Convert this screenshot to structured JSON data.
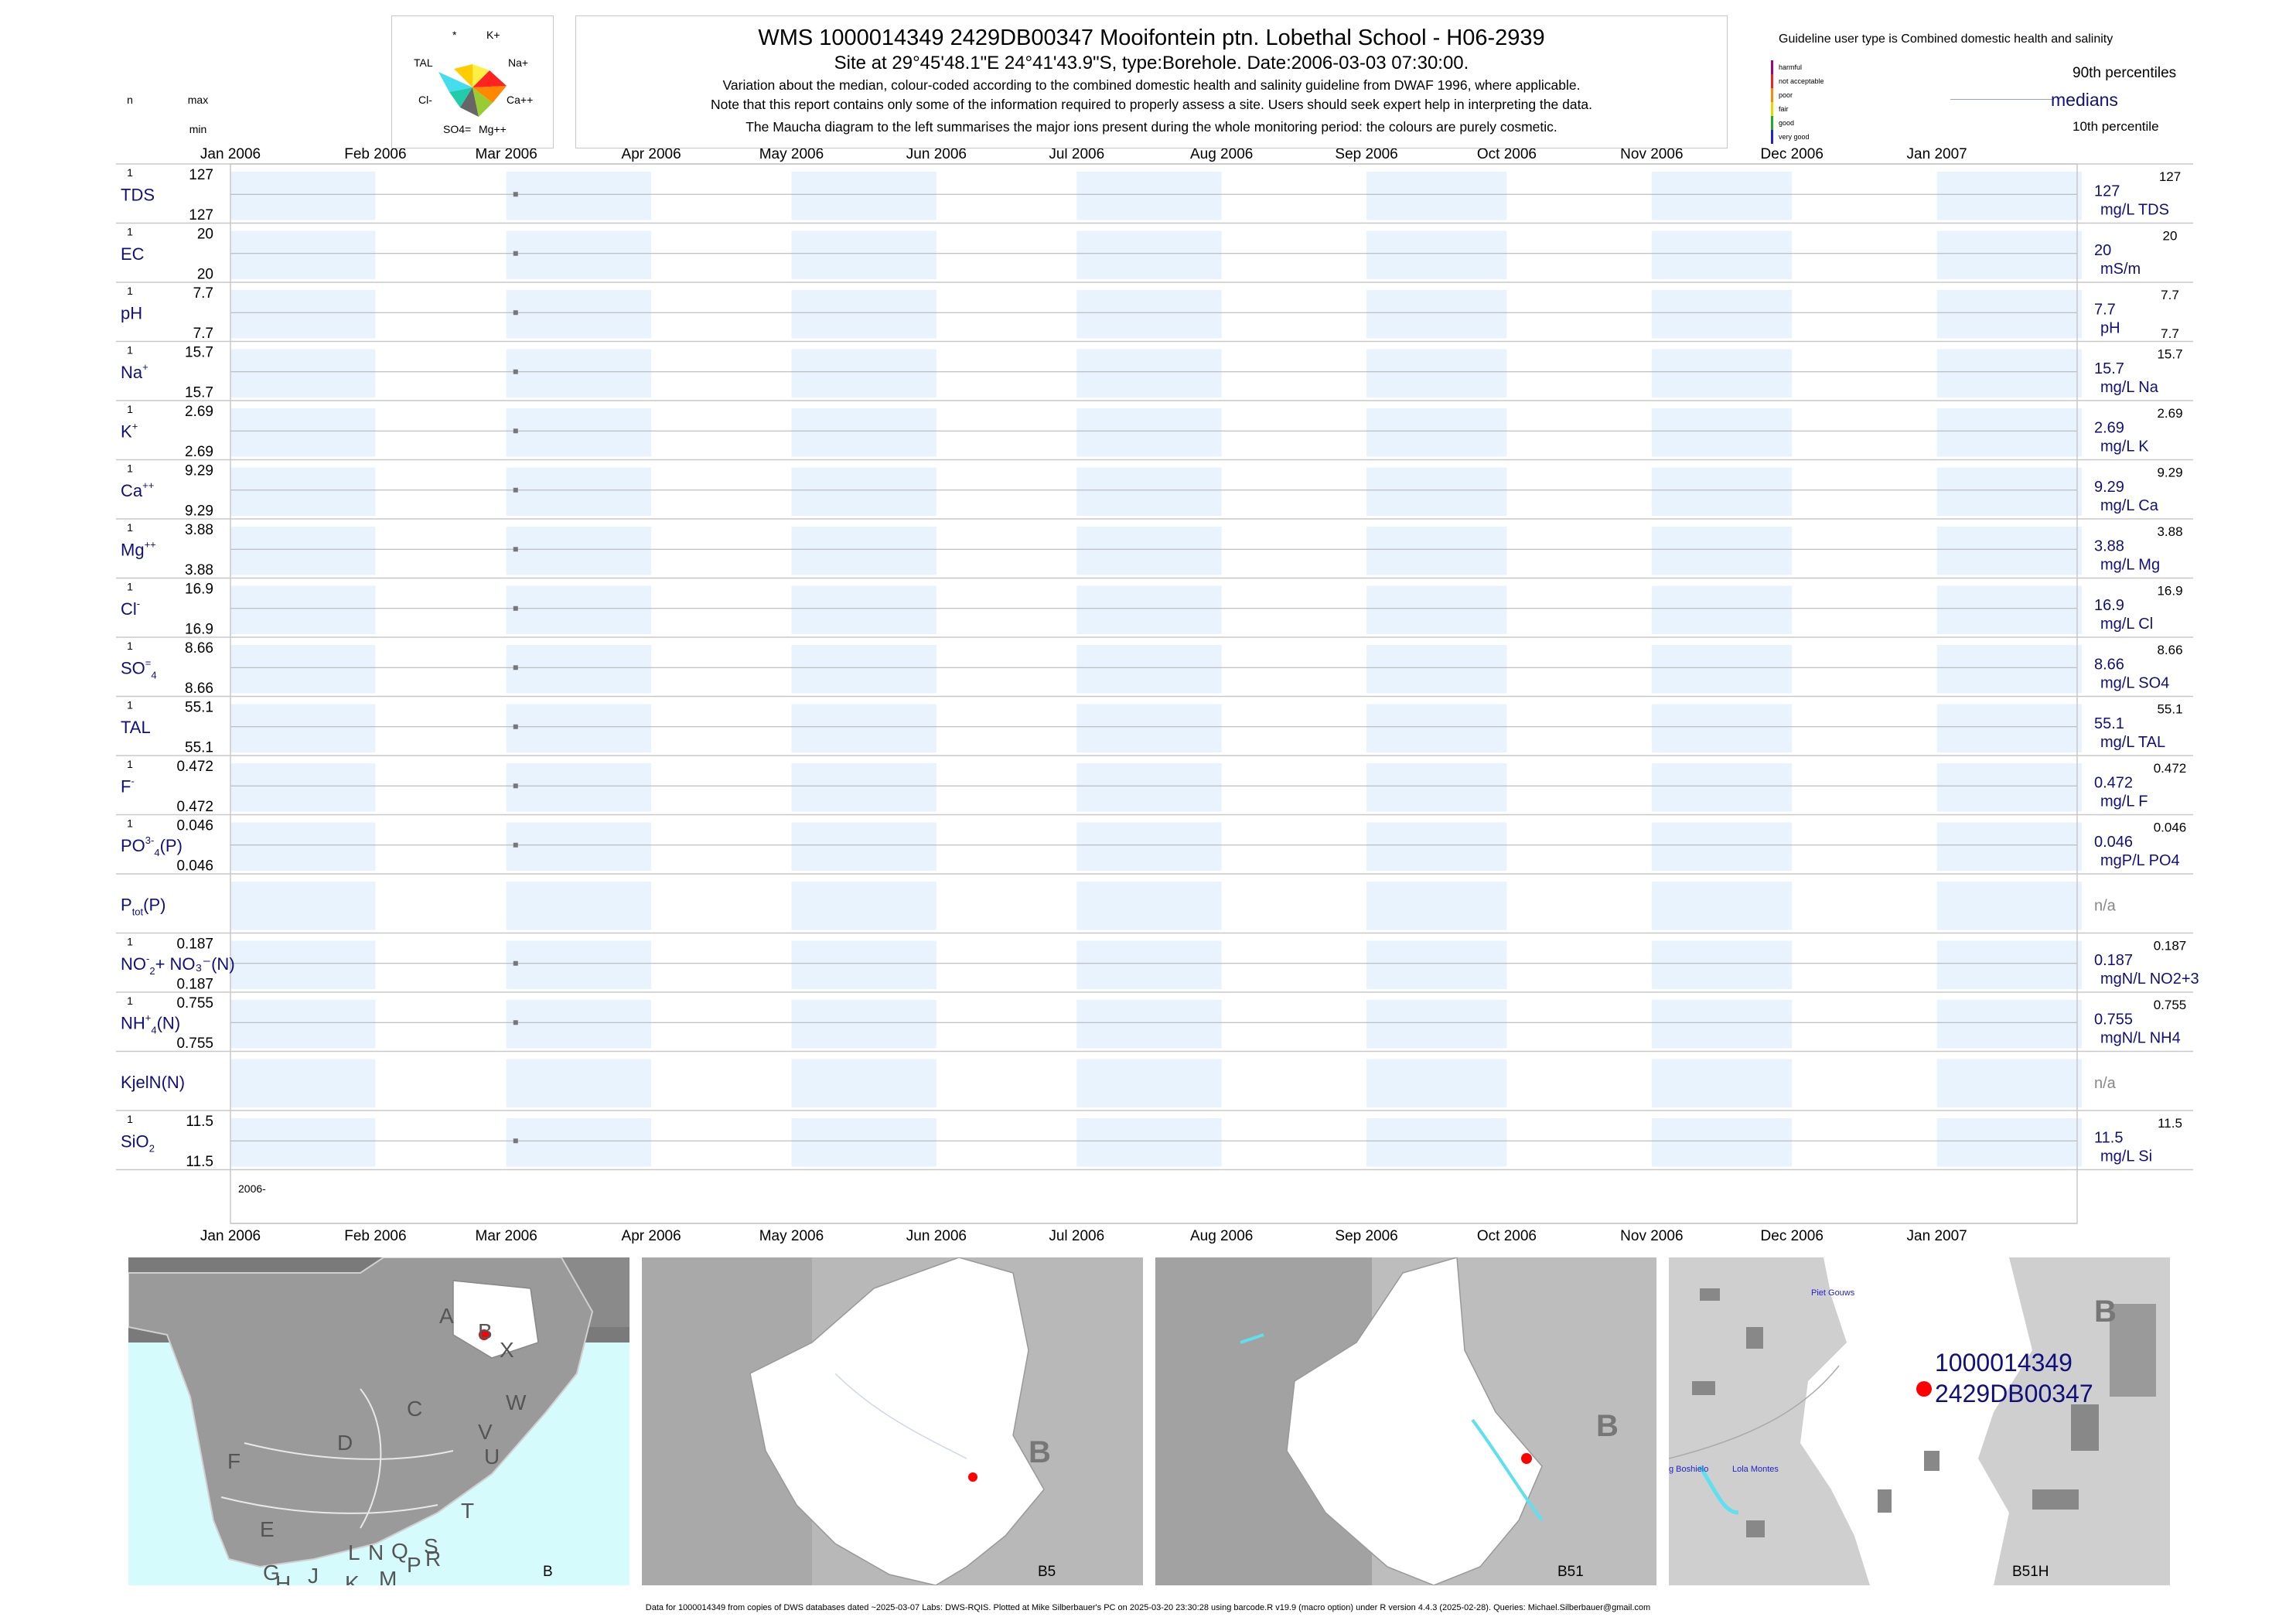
{
  "header": {
    "title": "WMS 1000014349 2429DB00347 Mooifontein ptn. Lobethal School - H06-2939",
    "subtitle": "Site at 29°45'48.1\"E 24°41'43.9\"S, type:Borehole. Date:2006-03-03 07:30:00.",
    "notes": [
      "Variation about the median,  colour-coded according to the combined domestic health and salinity guideline from DWAF 1996, where applicable.",
      "Note that this report contains only some of the information required to properly assess a site. Users should seek expert help in interpreting the data.",
      "The Maucha diagram to the left summarises the major ions present during the whole monitoring period: the colours are purely cosmetic."
    ]
  },
  "maucha": {
    "labels": [
      "*",
      "K+",
      "TAL",
      "Na+",
      "Cl-",
      "Ca++",
      "SO4=",
      "Mg++"
    ],
    "colors": [
      "#ffee44",
      "#ff8800",
      "#ff2222",
      "#44ddee",
      "#22ccaa",
      "#99cc33",
      "#ffcc00",
      "#666666"
    ]
  },
  "guideline": {
    "title": "Guideline user type is Combined domestic health and salinity",
    "levels": [
      {
        "label": "harmful",
        "color": "#aa0077"
      },
      {
        "label": "not acceptable",
        "color": "#ee2222"
      },
      {
        "label": "poor",
        "color": "#ff8800"
      },
      {
        "label": "fair",
        "color": "#dddd00"
      },
      {
        "label": "good",
        "color": "#22aa22"
      },
      {
        "label": "very good",
        "color": "#2222cc"
      }
    ],
    "p90_label": "90th percentiles",
    "median_label": "medians",
    "p10_label": "10th percentile"
  },
  "col_headers": {
    "n": "n",
    "max": "max",
    "min": "min"
  },
  "footer": "Data for 1000014349 from copies of DWS databases dated ~2025-03-07 Labs: DWS-RQIS. Plotted at Mike Silberbauer's PC on 2025-03-20 23:30:28 using barcode.R v19.9 (macro option) under R version 4.4.3 (2025-02-28). Queries: Michael.Silberbauer@gmail.com",
  "chart_data": {
    "type": "scatter",
    "x_axis": {
      "type": "date",
      "range": [
        "2006-01-01",
        "2007-01-31"
      ],
      "tick_labels": [
        "Jan 2006",
        "Feb 2006",
        "Mar 2006",
        "Apr 2006",
        "May 2006",
        "Jun 2006",
        "Jul 2006",
        "Aug 2006",
        "Sep 2006",
        "Oct 2006",
        "Nov 2006",
        "Dec 2006",
        "Jan 2007"
      ],
      "year_label": "2006-"
    },
    "sample_date": "2006-03-03",
    "series": [
      {
        "name": "TDS",
        "sub": "",
        "sup": "",
        "n": "1",
        "max": "127",
        "min": "127",
        "value": 127,
        "median": "127",
        "unit": "mg/L TDS",
        "p90": "127",
        "p10": ""
      },
      {
        "name": "EC",
        "sub": "",
        "sup": "",
        "n": "1",
        "max": "20",
        "min": "20",
        "value": 20,
        "median": "20",
        "unit": "mS/m",
        "p90": "20",
        "p10": ""
      },
      {
        "name": "pH",
        "sub": "",
        "sup": "",
        "n": "1",
        "max": "7.7",
        "min": "7.7",
        "value": 7.7,
        "median": "7.7",
        "unit": "pH",
        "p90": "7.7",
        "p10": "7.7"
      },
      {
        "name": "Na",
        "sub": "",
        "sup": "+",
        "n": "1",
        "max": "15.7",
        "min": "15.7",
        "value": 15.7,
        "median": "15.7",
        "unit": "mg/L Na",
        "p90": "15.7",
        "p10": ""
      },
      {
        "name": "K",
        "sub": "",
        "sup": "+",
        "n": "1",
        "max": "2.69",
        "min": "2.69",
        "value": 2.69,
        "median": "2.69",
        "unit": "mg/L K",
        "p90": "2.69",
        "p10": ""
      },
      {
        "name": "Ca",
        "sub": "",
        "sup": "++",
        "n": "1",
        "max": "9.29",
        "min": "9.29",
        "value": 9.29,
        "median": "9.29",
        "unit": "mg/L Ca",
        "p90": "9.29",
        "p10": ""
      },
      {
        "name": "Mg",
        "sub": "",
        "sup": "++",
        "n": "1",
        "max": "3.88",
        "min": "3.88",
        "value": 3.88,
        "median": "3.88",
        "unit": "mg/L Mg",
        "p90": "3.88",
        "p10": ""
      },
      {
        "name": "Cl",
        "sub": "",
        "sup": "-",
        "n": "1",
        "max": "16.9",
        "min": "16.9",
        "value": 16.9,
        "median": "16.9",
        "unit": "mg/L Cl",
        "p90": "16.9",
        "p10": ""
      },
      {
        "name": "SO",
        "sub": "4",
        "sup": "=",
        "n": "1",
        "max": "8.66",
        "min": "8.66",
        "value": 8.66,
        "median": "8.66",
        "unit": "mg/L SO4",
        "p90": "8.66",
        "p10": ""
      },
      {
        "name": "TAL",
        "sub": "",
        "sup": "",
        "n": "1",
        "max": "55.1",
        "min": "55.1",
        "value": 55.1,
        "median": "55.1",
        "unit": "mg/L TAL",
        "p90": "55.1",
        "p10": ""
      },
      {
        "name": "F",
        "sub": "",
        "sup": "-",
        "n": "1",
        "max": "0.472",
        "min": "0.472",
        "value": 0.472,
        "median": "0.472",
        "unit": "mg/L F",
        "p90": "0.472",
        "p10": ""
      },
      {
        "name": "PO",
        "sub": "4",
        "sup": "3-",
        "tail": "(P)",
        "n": "1",
        "max": "0.046",
        "min": "0.046",
        "value": 0.046,
        "median": "0.046",
        "unit": "mgP/L PO4",
        "p90": "0.046",
        "p10": ""
      },
      {
        "name": "P",
        "sub": "tot",
        "sup": "",
        "tail": "(P)",
        "n": "",
        "max": "",
        "min": "",
        "value": null,
        "median": "n/a",
        "unit": "",
        "p90": "",
        "p10": ""
      },
      {
        "name": "NO",
        "sub": "2",
        "sup": "-",
        "tail": "+ NO₃⁻(N)",
        "n": "1",
        "max": "0.187",
        "min": "0.187",
        "value": 0.187,
        "median": "0.187",
        "unit": "mgN/L NO2+3",
        "p90": "0.187",
        "p10": ""
      },
      {
        "name": "NH",
        "sub": "4",
        "sup": "+",
        "tail": "(N)",
        "n": "1",
        "max": "0.755",
        "min": "0.755",
        "value": 0.755,
        "median": "0.755",
        "unit": "mgN/L NH4",
        "p90": "0.755",
        "p10": ""
      },
      {
        "name": "KjelN(N)",
        "sub": "",
        "sup": "",
        "n": "",
        "max": "",
        "min": "",
        "value": null,
        "median": "n/a",
        "unit": "",
        "p90": "",
        "p10": ""
      },
      {
        "name": "SiO",
        "sub": "2",
        "sup": "",
        "n": "1",
        "max": "11.5",
        "min": "11.5",
        "value": 11.5,
        "median": "11.5",
        "unit": "mg/L Si",
        "p90": "11.5",
        "p10": ""
      }
    ]
  },
  "maps": [
    {
      "caption": "B",
      "letters": [
        "A",
        "B",
        "X",
        "C",
        "W",
        "D",
        "V",
        "U",
        "F",
        "E",
        "T",
        "L",
        "N",
        "Q",
        "S",
        "G",
        "H",
        "J",
        "K",
        "M",
        "P",
        "R"
      ]
    },
    {
      "caption": "B5",
      "region": "B"
    },
    {
      "caption": "B51",
      "region": "B"
    },
    {
      "caption": "B51H",
      "region": "B",
      "site_line1": "1000014349",
      "site_line2": "2429DB00347",
      "places": [
        "Piet Gouws",
        "g Boshielo",
        "Lola Montes"
      ]
    }
  ]
}
